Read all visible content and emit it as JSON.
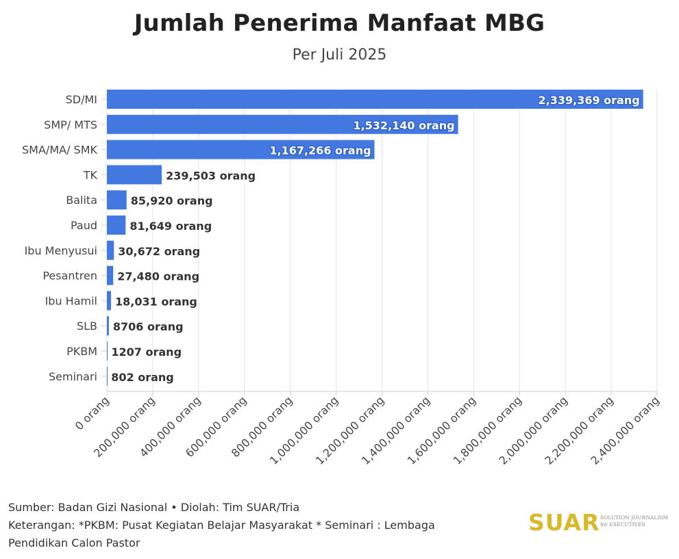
{
  "chart_data": {
    "type": "bar",
    "orientation": "horizontal",
    "title": "Jumlah Penerima Manfaat MBG",
    "subtitle": "Per Juli 2025",
    "categories": [
      "SD/MI",
      "SMP/ MTS",
      "SMA/MA/ SMK",
      "TK",
      "Balita",
      "Paud",
      "Ibu Menyusui",
      "Pesantren",
      "Ibu Hamil",
      "SLB",
      "PKBM",
      "Seminari"
    ],
    "values": [
      2339369,
      1532140,
      1167266,
      239503,
      85920,
      81649,
      30672,
      27480,
      18031,
      8706,
      1207,
      802
    ],
    "data_labels": [
      "2,339,369 orang",
      "1,532,140 orang",
      "1,167,266 orang",
      "239,503 orang",
      "85,920 orang",
      "81,649 orang",
      "30,672 orang",
      "27,480 orang",
      "18,031 orang",
      "8706 orang",
      "1207 orang",
      "802 orang"
    ],
    "xlim": [
      0,
      2400000
    ],
    "x_ticks": [
      0,
      200000,
      400000,
      600000,
      800000,
      1000000,
      1200000,
      1400000,
      1600000,
      1800000,
      2000000,
      2200000,
      2400000
    ],
    "x_tick_labels": [
      "0 orang",
      "200,000 orang",
      "400,000 orang",
      "600,000 orang",
      "800,000 orang",
      "1,000,000 orang",
      "1,200,000 orang",
      "1,400,000 orang",
      "1,600,000 orang",
      "1,800,000 orang",
      "2,000,000 orang",
      "2,200,000 orang",
      "2,400,000 orang"
    ],
    "xlabel": "",
    "ylabel": "",
    "grid": true,
    "legend": "none",
    "bar_color": "#4378e0"
  },
  "footer": {
    "source": "Sumber: Badan Gizi Nasional • Diolah: Tim SUAR/Tria",
    "note_line1": "Keterangan: *PKBM: Pusat Kegiatan Belajar Masyarakat * Seminari : Lembaga",
    "note_line2": "Pendidikan Calon Pastor"
  },
  "logo": {
    "word": "SUAR",
    "tagline_line1": "SOLUTION JOURNALISM",
    "tagline_line2": "for EXECUTIVES"
  }
}
